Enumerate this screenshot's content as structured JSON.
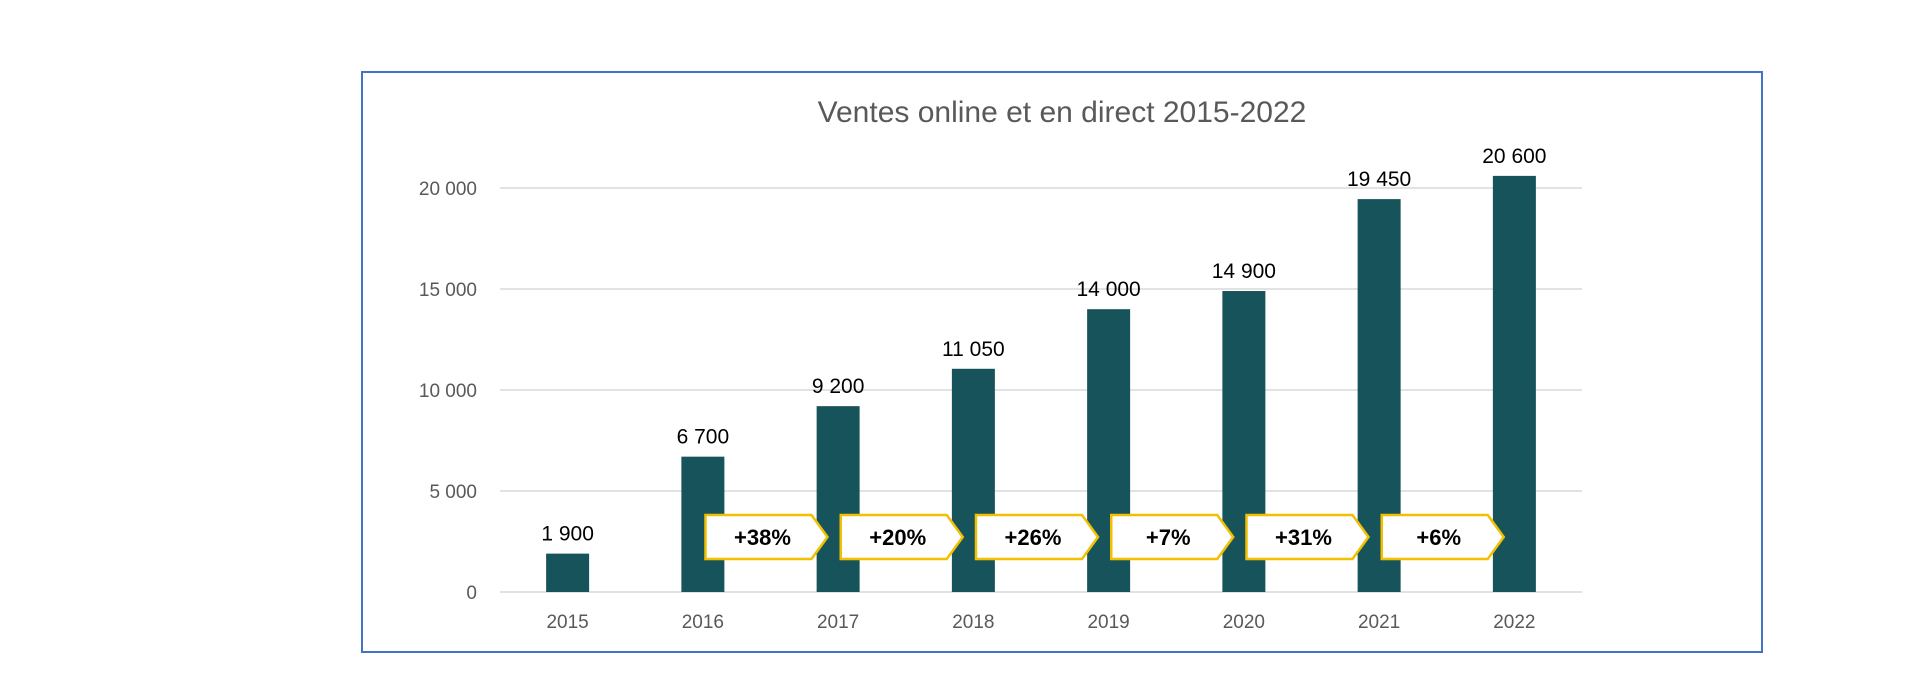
{
  "chart_data": {
    "type": "bar",
    "title": "Ventes online et en direct 2015-2022",
    "xlabel": "",
    "ylabel": "",
    "categories": [
      "2015",
      "2016",
      "2017",
      "2018",
      "2019",
      "2020",
      "2021",
      "2022"
    ],
    "values": [
      1900,
      6700,
      9200,
      11050,
      14000,
      14900,
      19450,
      20600
    ],
    "value_labels": [
      "1 900",
      "6 700",
      "9 200",
      "11 050",
      "14 000",
      "14 900",
      "19 450",
      "20 600"
    ],
    "yticks": [
      0,
      5000,
      10000,
      15000,
      20000
    ],
    "ytick_labels": [
      "0",
      "5 000",
      "10 000",
      "15 000",
      "20 000"
    ],
    "ylim": [
      0,
      20000
    ],
    "grid": true,
    "legend": "none",
    "annotations": [
      "+38%",
      "+20%",
      "+26%",
      "+7%",
      "+31%",
      "+6%"
    ],
    "colors": {
      "bar": "#17535a",
      "grid": "#d9d9d9",
      "frame": "#4472c4",
      "callout_border": "#f2c000",
      "title": "#595959",
      "axis_text": "#595959",
      "label_text": "#000000"
    }
  }
}
